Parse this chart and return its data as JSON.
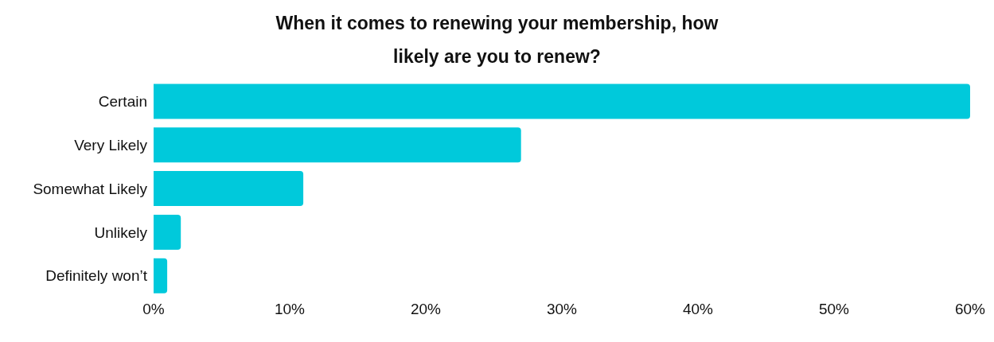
{
  "chart_data": {
    "type": "bar",
    "orientation": "horizontal",
    "title": "When it comes to renewing your membership, how likely are you to renew?",
    "categories": [
      "Certain",
      "Very Likely",
      "Somewhat Likely",
      "Unlikely",
      "Definitely won’t"
    ],
    "values": [
      60,
      27,
      11,
      2,
      1
    ],
    "color": "#00c9db",
    "xlim": [
      0,
      60
    ],
    "xticks": [
      {
        "value": 0,
        "label": "0%"
      },
      {
        "value": 10,
        "label": "10%"
      },
      {
        "value": 20,
        "label": "20%"
      },
      {
        "value": 30,
        "label": "30%"
      },
      {
        "value": 40,
        "label": "40%"
      },
      {
        "value": 50,
        "label": "50%"
      },
      {
        "value": 60,
        "label": "60%"
      }
    ],
    "grid": false
  }
}
